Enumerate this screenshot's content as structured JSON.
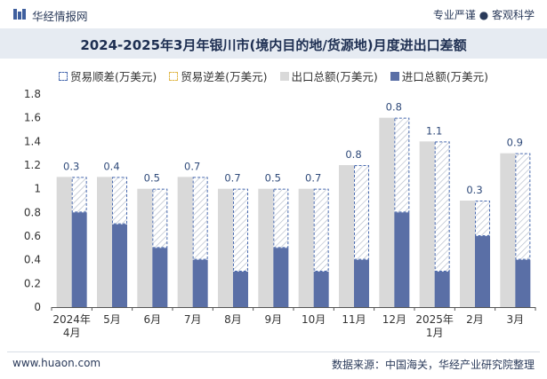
{
  "header": {
    "site_name": "华经情报网",
    "tagline": "专业严谨 ● 客观科学"
  },
  "footer": {
    "website": "www.huaon.com",
    "source": "数据来源：中国海关，华经产业研究院整理"
  },
  "colors": {
    "export": "#d9d9d9",
    "import": "#5a6fa6",
    "surplus_border": "#4a6bb0",
    "deficit_border": "#e0b84a",
    "title_band": "#e6ebf2"
  },
  "chart_data": {
    "type": "bar",
    "title": "2024-2025年3月年银川市(境内目的地/货源地)月度进出口差额",
    "legend": [
      "贸易顺差(万美元)",
      "贸易逆差(万美元)",
      "出口总额(万美元)",
      "进口总额(万美元)"
    ],
    "categories": [
      [
        "2024年",
        "4月"
      ],
      [
        "5月"
      ],
      [
        "6月"
      ],
      [
        "7月"
      ],
      [
        "8月"
      ],
      [
        "9月"
      ],
      [
        "10月"
      ],
      [
        "11月"
      ],
      [
        "12月"
      ],
      [
        "2025年",
        "1月"
      ],
      [
        "2月"
      ],
      [
        "3月"
      ]
    ],
    "y_ticks": [
      "0",
      "0.2",
      "0.4",
      "0.6",
      "0.8",
      "1",
      "1.2",
      "1.4",
      "1.6",
      "1.8"
    ],
    "ylim": [
      0,
      1.8
    ],
    "series": [
      {
        "name": "出口总额(万美元)",
        "values": [
          1.1,
          1.1,
          1.0,
          1.1,
          1.0,
          1.0,
          1.0,
          1.2,
          1.6,
          1.4,
          0.9,
          1.3
        ]
      },
      {
        "name": "进口总额(万美元)",
        "values": [
          0.8,
          0.7,
          0.5,
          0.4,
          0.3,
          0.5,
          0.3,
          0.4,
          0.8,
          0.3,
          0.6,
          0.4
        ]
      },
      {
        "name": "贸易顺差(万美元)",
        "values": [
          0.3,
          0.4,
          0.5,
          0.7,
          0.7,
          0.5,
          0.7,
          0.8,
          0.8,
          1.1,
          0.3,
          0.9
        ]
      }
    ],
    "data_labels": [
      "0.3",
      "0.4",
      "0.5",
      "0.7",
      "0.7",
      "0.5",
      "0.7",
      "0.8",
      "0.8",
      "1.1",
      "0.3",
      "0.9"
    ]
  }
}
